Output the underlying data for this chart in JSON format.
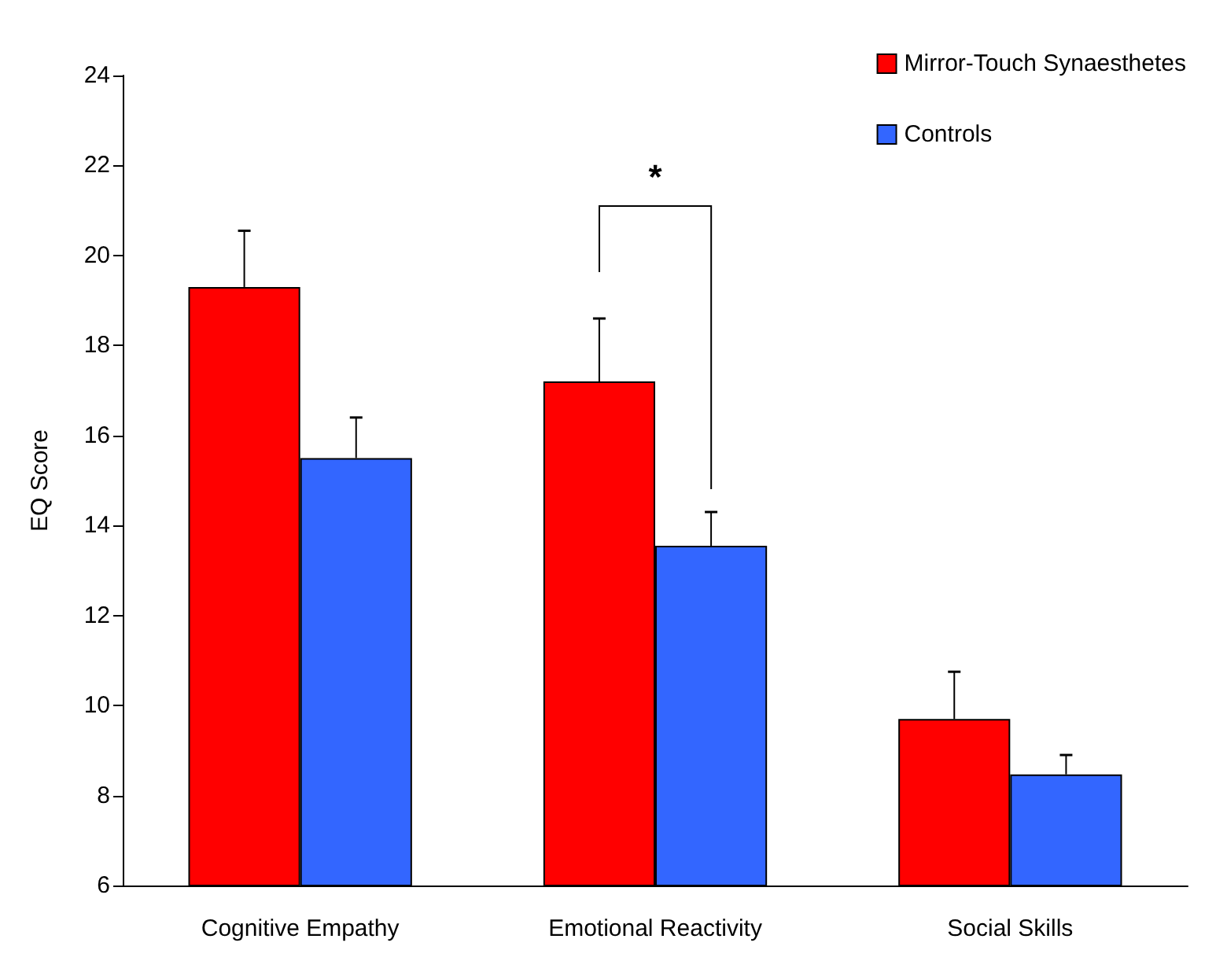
{
  "chart_data": {
    "type": "bar",
    "ylabel": "EQ Score",
    "categories": [
      "Cognitive Empathy",
      "Emotional Reactivity",
      "Social Skills"
    ],
    "series": [
      {
        "name": "Mirror-Touch Synaesthetes",
        "color": "#ff0000",
        "values": [
          19.3,
          17.2,
          9.7
        ],
        "errors": [
          [
            19.3,
            20.55
          ],
          [
            17.2,
            18.6
          ],
          [
            9.7,
            10.75
          ]
        ]
      },
      {
        "name": "Controls",
        "color": "#3366ff",
        "values": [
          15.5,
          13.55,
          8.47
        ],
        "errors": [
          [
            15.5,
            16.4
          ],
          [
            13.55,
            14.3
          ],
          [
            8.47,
            8.9
          ]
        ]
      }
    ],
    "ylim": [
      6,
      24
    ],
    "yticks": [
      6,
      8,
      10,
      12,
      14,
      16,
      18,
      20,
      22,
      24
    ],
    "annotations": [
      "*"
    ],
    "grid": false,
    "legend": "top right"
  }
}
